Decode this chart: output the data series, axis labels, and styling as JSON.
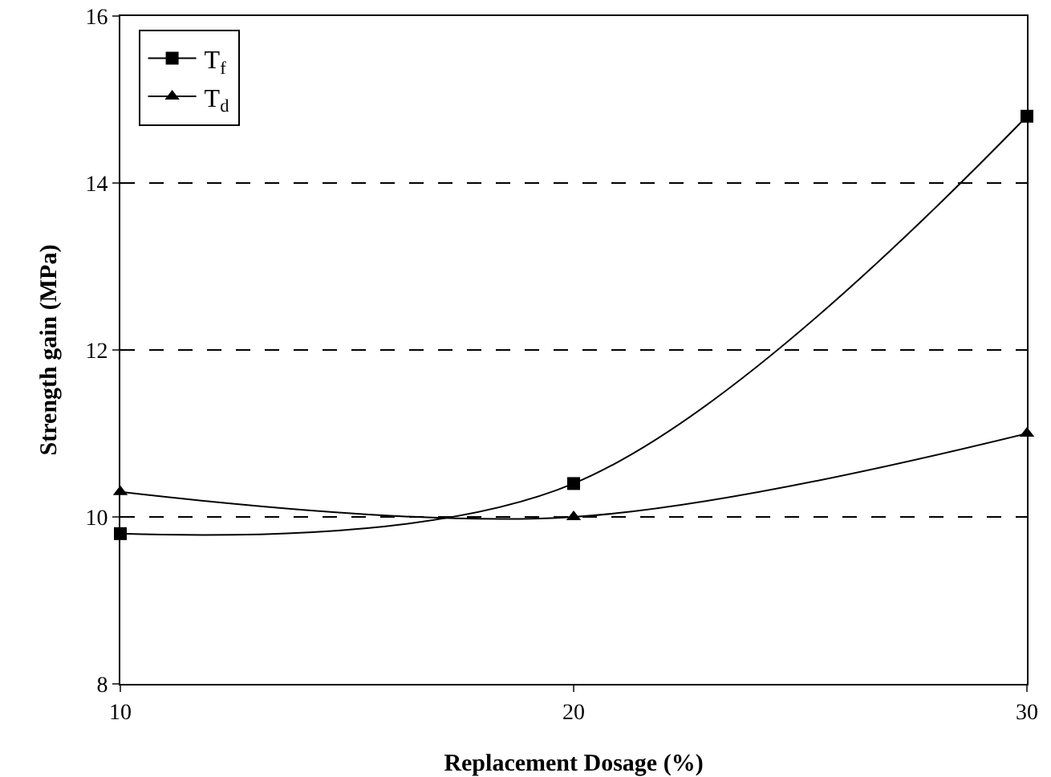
{
  "chart_data": {
    "type": "line",
    "xlabel": "Replacement Dosage (%)",
    "ylabel": "Strength gain (MPa)",
    "x": [
      10,
      20,
      30
    ],
    "series": [
      {
        "name": "T$_{f}$",
        "color": "#000000",
        "marker": "square",
        "values": [
          9.8,
          10.4,
          14.8
        ]
      },
      {
        "name": "T$_{d}$",
        "color": "#000000",
        "marker": "triangle",
        "values": [
          10.3,
          10.0,
          11.0
        ]
      }
    ],
    "xlim": [
      10,
      30
    ],
    "xticks": [
      10,
      20,
      30
    ],
    "ylim": [
      8,
      16
    ],
    "yticks": [
      8,
      10,
      12,
      14,
      16
    ],
    "grid": "y",
    "legend": "top left",
    "line_style": "solid"
  }
}
